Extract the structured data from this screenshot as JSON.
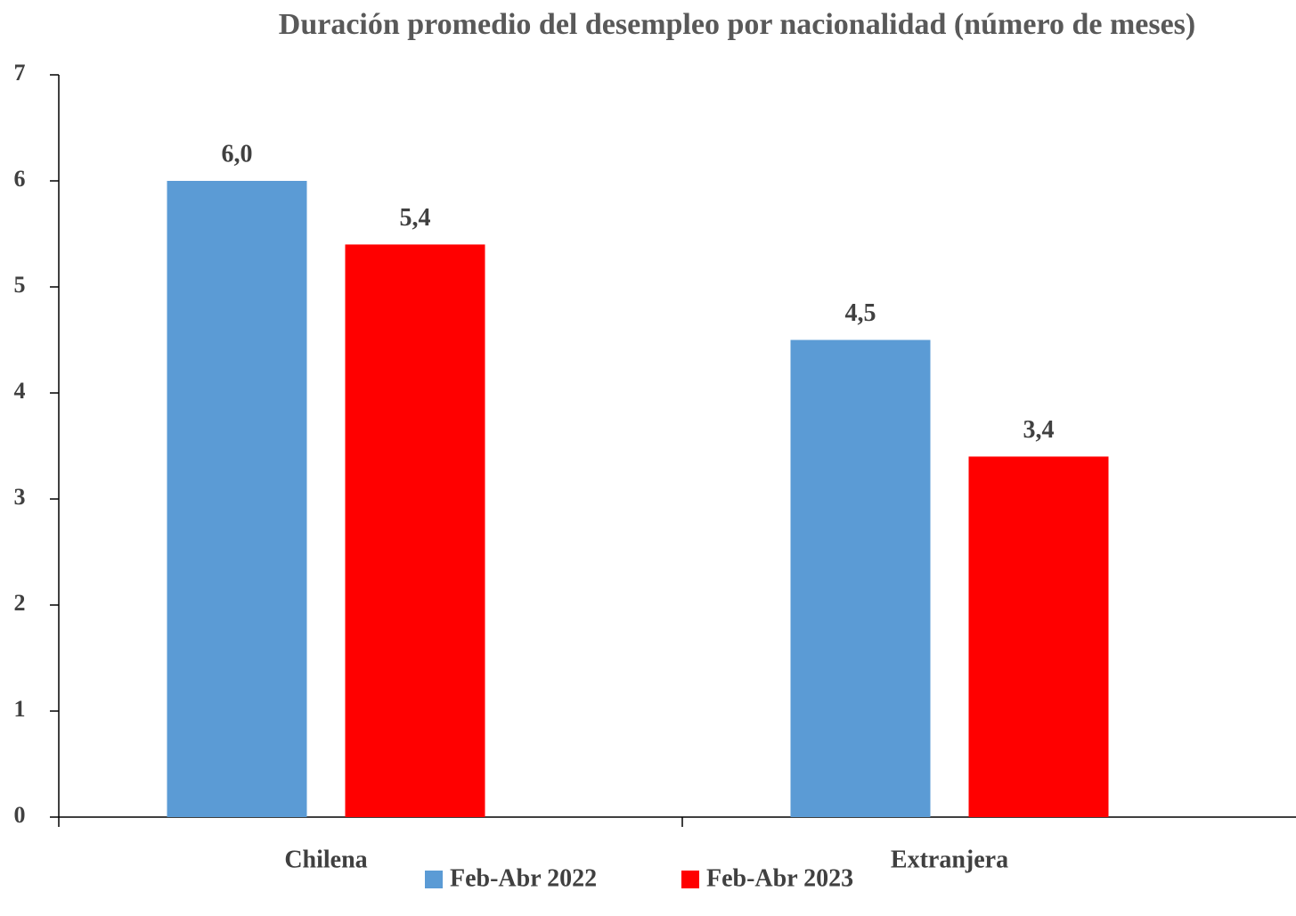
{
  "chart_data": {
    "type": "bar",
    "title": "Duración promedio del desempleo por nacionalidad (número de meses)",
    "categories": [
      "Chilena",
      "Extranjera"
    ],
    "series": [
      {
        "name": "Feb-Abr 2022",
        "color": "#5b9bd5",
        "values": [
          6.0,
          4.5
        ],
        "value_labels": [
          "6,0",
          "4,5"
        ]
      },
      {
        "name": "Feb-Abr 2023",
        "color": "#ff0000",
        "values": [
          5.4,
          3.4
        ],
        "value_labels": [
          "5,4",
          "3,4"
        ]
      }
    ],
    "ylim": [
      0,
      7
    ],
    "yticks": [
      0,
      1,
      2,
      3,
      4,
      5,
      6,
      7
    ],
    "grid": false,
    "legend": "bottom"
  }
}
